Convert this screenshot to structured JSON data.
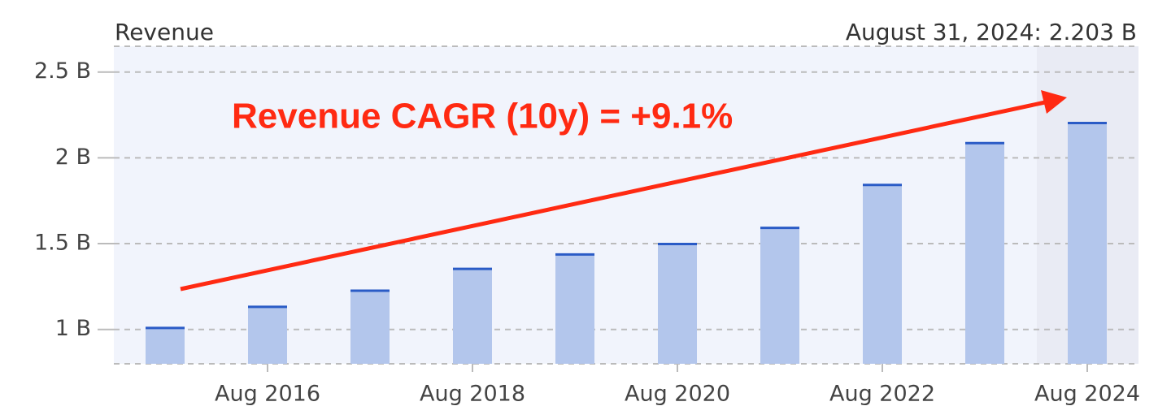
{
  "chart_data": {
    "type": "bar",
    "title": "Revenue",
    "hover_label": "August 31, 2024: 2.203 B",
    "annotation": "Revenue CAGR (10y) = +9.1%",
    "categories": [
      null,
      "Aug 2016",
      null,
      "Aug 2018",
      null,
      "Aug 2020",
      null,
      "Aug 2022",
      null,
      "Aug 2024"
    ],
    "values": [
      1.009,
      1.132,
      1.226,
      1.353,
      1.437,
      1.498,
      1.592,
      1.842,
      2.086,
      2.203
    ],
    "color": "#b3c6ec",
    "cap_color": "#2a5bc6",
    "ylim": [
      0.8,
      2.65
    ],
    "yticks": [
      {
        "value": 1,
        "label": "1 B"
      },
      {
        "value": 1.5,
        "label": "1.5 B"
      },
      {
        "value": 2,
        "label": "2 B"
      },
      {
        "value": 2.5,
        "label": "2.5 B"
      }
    ],
    "grid": true
  }
}
